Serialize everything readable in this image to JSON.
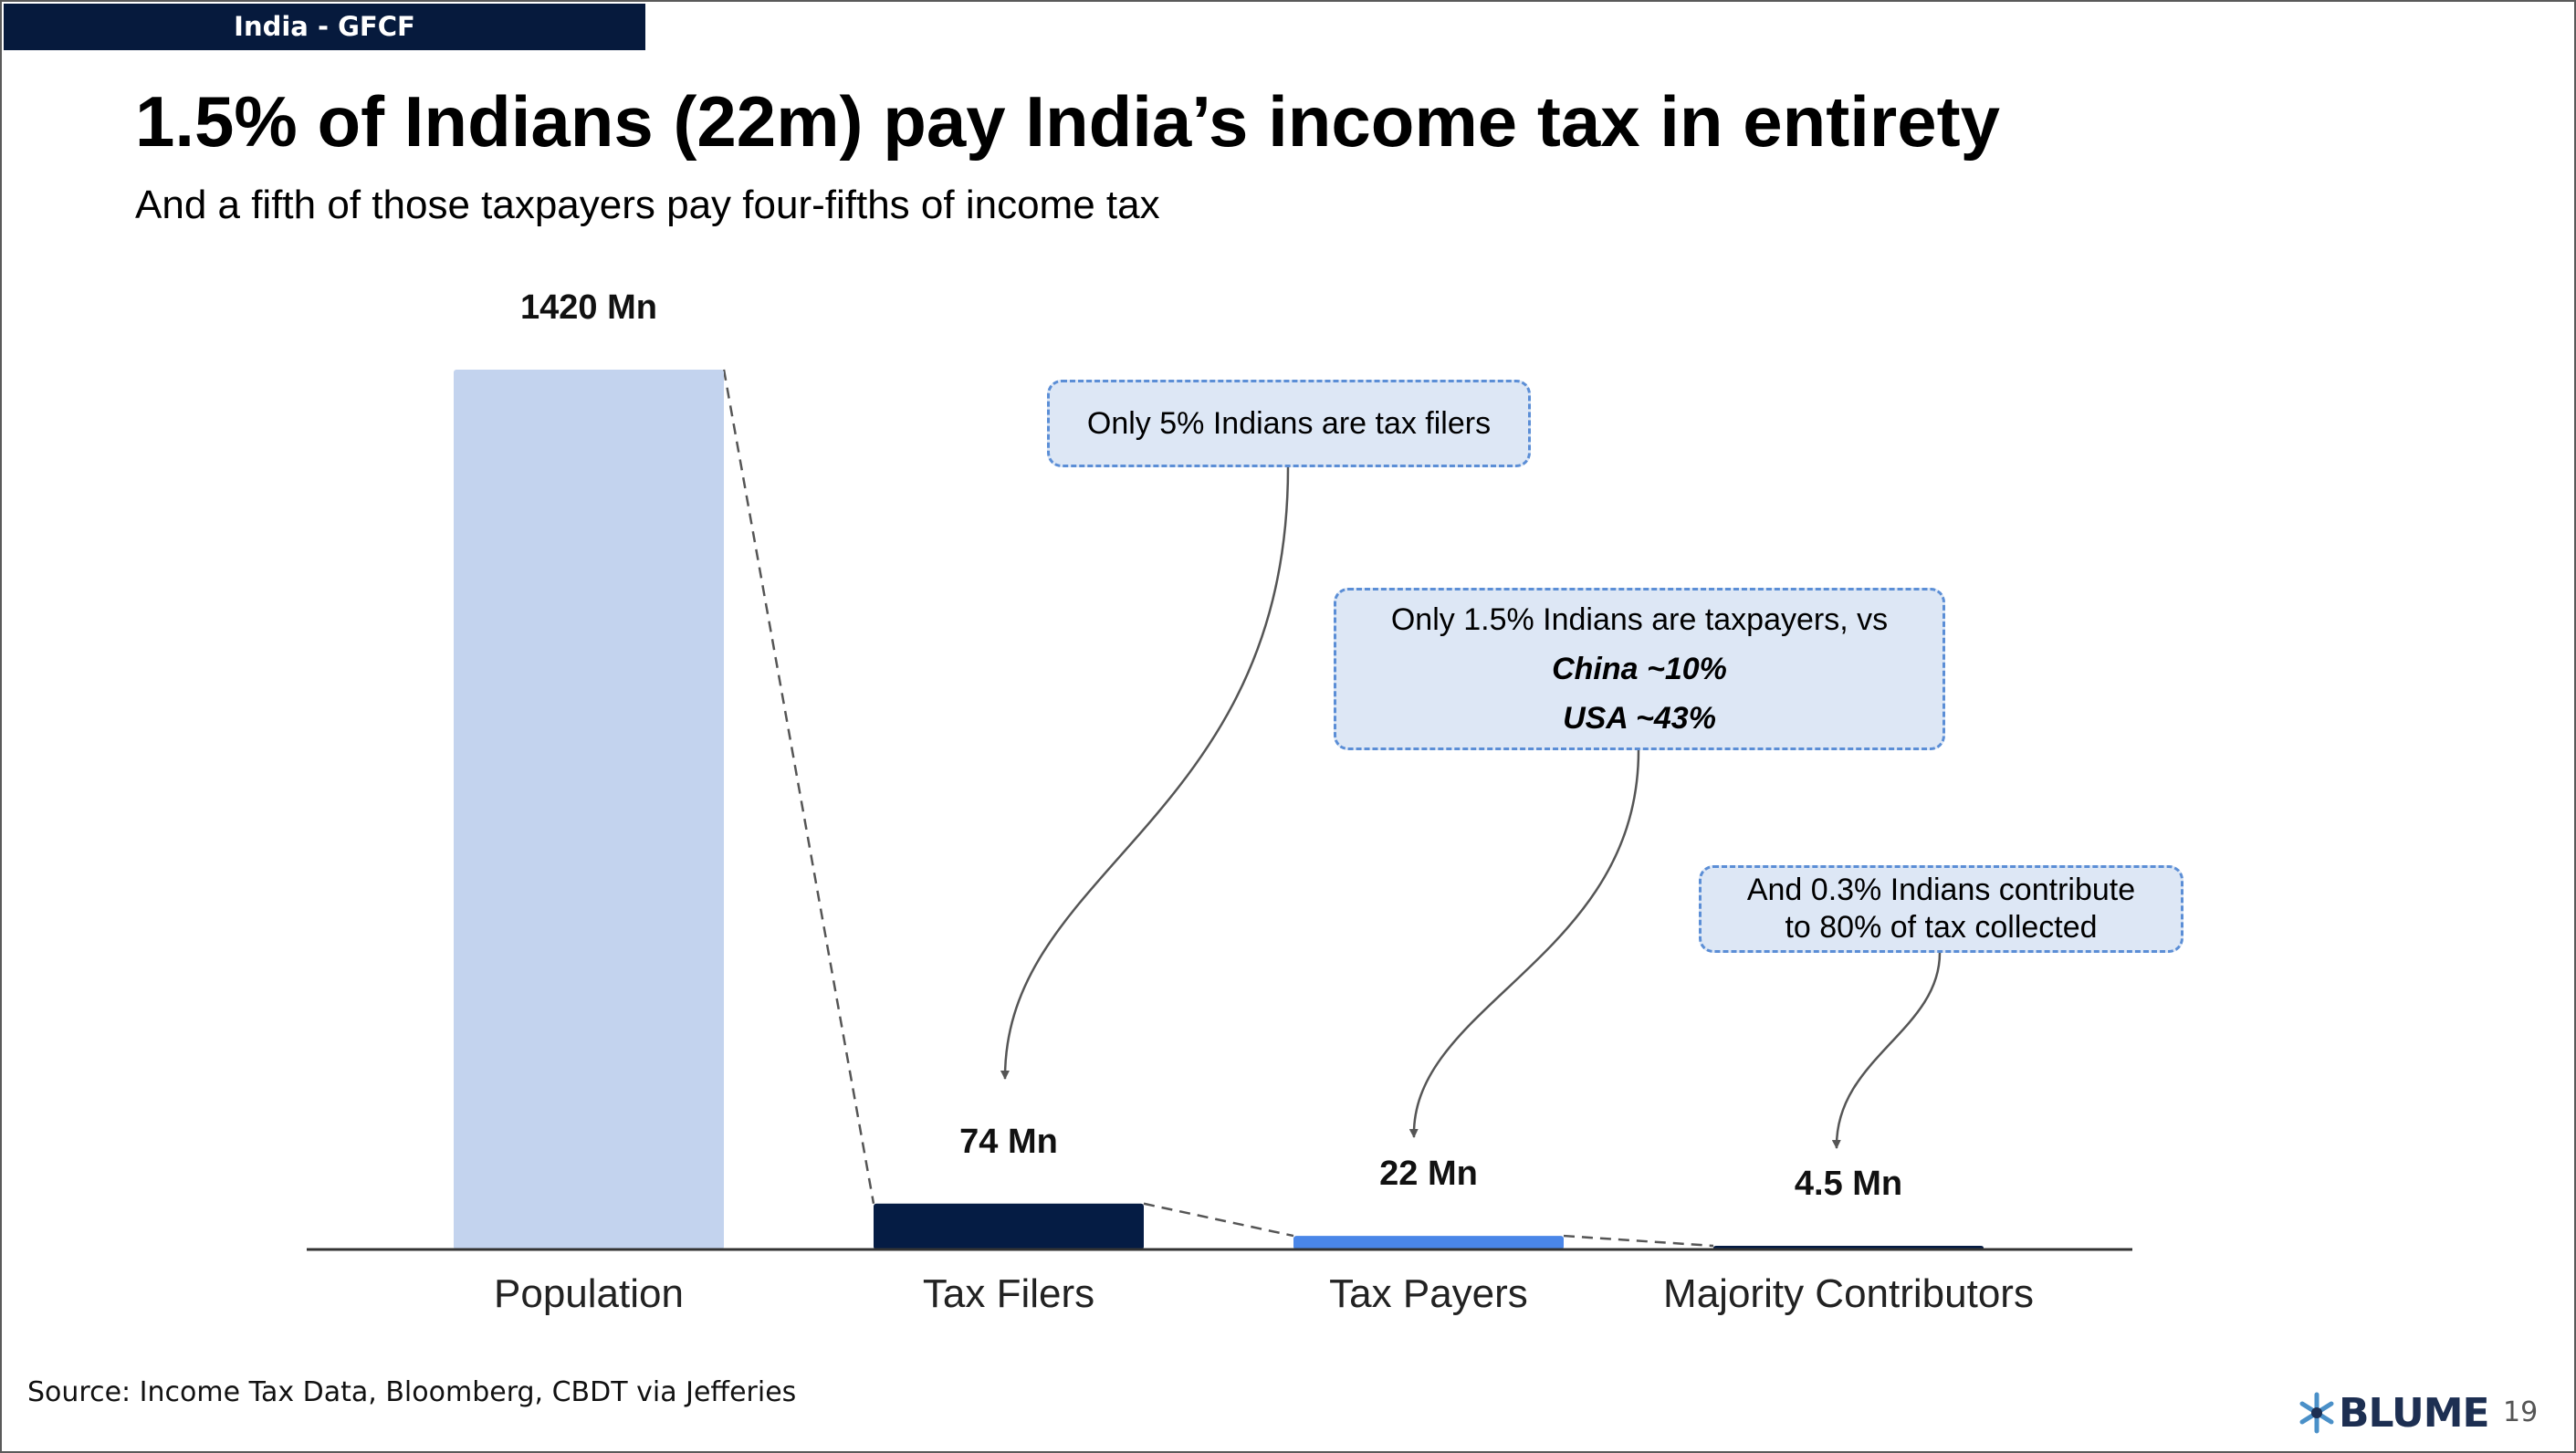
{
  "header": {
    "tag": "India - GFCF"
  },
  "title": "1.5% of Indians (22m) pay India’s income tax in entirety",
  "subtitle": "And a fifth of those taxpayers pay four-fifths of income tax",
  "chart_data": {
    "type": "bar",
    "categories": [
      "Population",
      "Tax Filers",
      "Tax Payers",
      "Majority Contributors"
    ],
    "values": [
      1420,
      74,
      22,
      4.5
    ],
    "value_labels": [
      "1420 Mn",
      "74 Mn",
      "22 Mn",
      "4.5 Mn"
    ],
    "bar_colors": [
      "#c3d3ee",
      "#051c44",
      "#4a86e8",
      "#051c44"
    ],
    "ylim": [
      0,
      1420
    ],
    "grid": false,
    "connectors": "dashed"
  },
  "callouts": {
    "filers": {
      "text": "Only 5% Indians are tax filers"
    },
    "payers": {
      "line1": "Only 1.5% Indians  are taxpayers, vs",
      "line2": "China ~10%",
      "line3": "USA ~43%"
    },
    "contributors": {
      "line1": "And 0.3% Indians contribute",
      "line2": "to 80% of tax collected"
    }
  },
  "footer": {
    "source": "Source: Income Tax Data, Bloomberg,  CBDT via Jefferies",
    "logo": "BLUME",
    "logo_icon": "blume-star-icon",
    "page_number": "19"
  },
  "colors": {
    "header_bg": "#061a3d",
    "callout_bg": "#dde7f5",
    "callout_border": "#5b8ed6"
  }
}
